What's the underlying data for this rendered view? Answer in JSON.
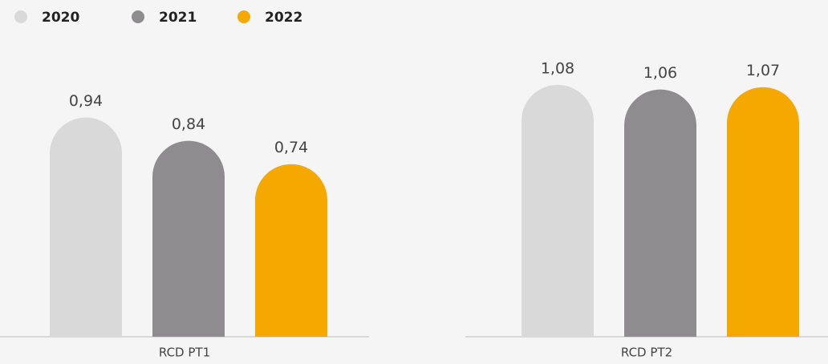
{
  "chart_data": {
    "type": "bar",
    "categories": [
      "RCD PT1",
      "RCD PT2"
    ],
    "series": [
      {
        "name": "2020",
        "color": "#d9d9d9",
        "values": [
          0.94,
          1.08
        ],
        "value_labels": [
          "0,94",
          "1,08"
        ]
      },
      {
        "name": "2021",
        "color": "#8e8c8e",
        "values": [
          0.84,
          1.06
        ],
        "value_labels": [
          "0,84",
          "1,06"
        ]
      },
      {
        "name": "2022",
        "color": "#f5a800",
        "values": [
          0.74,
          1.07
        ],
        "value_labels": [
          "0,74",
          "1,07"
        ]
      }
    ],
    "ylim": [
      0,
      1.1
    ],
    "legend": "top-left"
  }
}
